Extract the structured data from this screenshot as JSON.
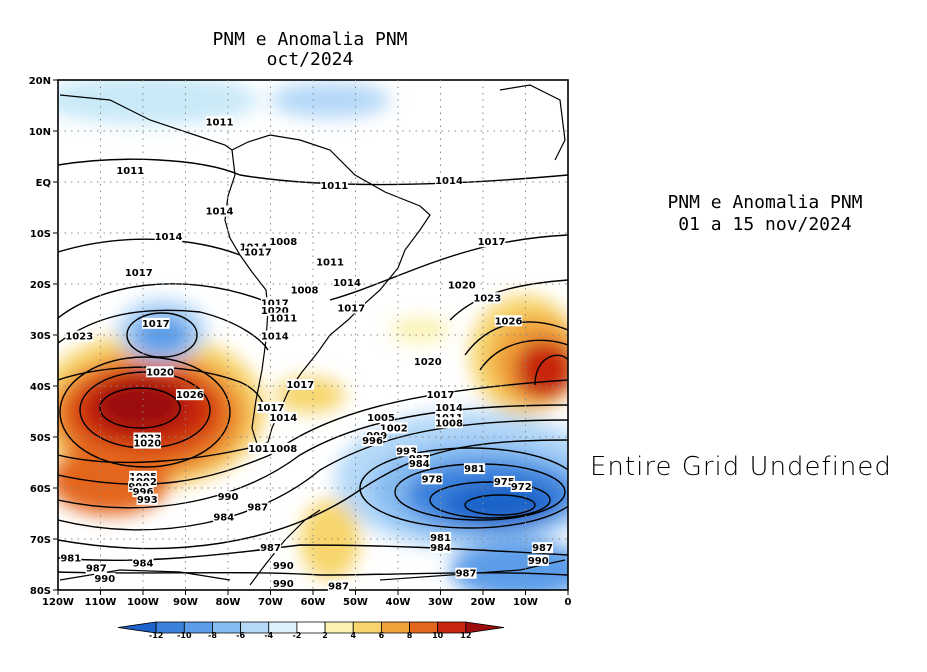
{
  "titles": {
    "map_line1": "PNM e Anomalia PNM",
    "map_line2": "oct/2024",
    "right_line1": "PNM e Anomalia PNM",
    "right_line2": "01 a 15 nov/2024",
    "right_panel_message": "Entire Grid Undefined"
  },
  "axes": {
    "lat_labels": [
      "20N",
      "10N",
      "EQ",
      "10S",
      "20S",
      "30S",
      "40S",
      "50S",
      "60S",
      "70S",
      "80S"
    ],
    "lon_labels": [
      "120W",
      "110W",
      "100W",
      "90W",
      "80W",
      "70W",
      "60W",
      "50W",
      "40W",
      "30W",
      "20W",
      "10W",
      "0"
    ]
  },
  "colorbar": {
    "labels": [
      "-12",
      "-10",
      "-8",
      "-6",
      "-4",
      "-2",
      "2",
      "4",
      "6",
      "8",
      "10",
      "12"
    ],
    "colors": [
      "#1d63c9",
      "#3b82dd",
      "#5b9de9",
      "#86bcf2",
      "#b4d8f8",
      "#dcf1fb",
      "#ffffff",
      "#fbf2b0",
      "#f7d56c",
      "#f0a23a",
      "#e4661c",
      "#c7260f",
      "#9b0d0d"
    ]
  },
  "contour_labels": [
    {
      "text": "1011",
      "lon": -82,
      "lat": 11.5
    },
    {
      "text": "1011",
      "lon": -103,
      "lat": 2
    },
    {
      "text": "1011",
      "lon": -55,
      "lat": -1
    },
    {
      "text": "1014",
      "lon": -28,
      "lat": 0
    },
    {
      "text": "1014",
      "lon": -82,
      "lat": -6
    },
    {
      "text": "1014",
      "lon": -94,
      "lat": -11
    },
    {
      "text": "1014",
      "lon": -74,
      "lat": -13
    },
    {
      "text": "1008",
      "lon": -67,
      "lat": -12
    },
    {
      "text": "1017",
      "lon": -73,
      "lat": -14
    },
    {
      "text": "1017",
      "lon": -18,
      "lat": -12
    },
    {
      "text": "1011",
      "lon": -56,
      "lat": -16
    },
    {
      "text": "1017",
      "lon": -101,
      "lat": -18
    },
    {
      "text": "1014",
      "lon": -52,
      "lat": -20
    },
    {
      "text": "1008",
      "lon": -62,
      "lat": -21.5
    },
    {
      "text": "1020",
      "lon": -25,
      "lat": -20.5
    },
    {
      "text": "1023",
      "lon": -19,
      "lat": -23
    },
    {
      "text": "1017",
      "lon": -69,
      "lat": -24
    },
    {
      "text": "1020",
      "lon": -69,
      "lat": -25.5
    },
    {
      "text": "1011",
      "lon": -67,
      "lat": -27
    },
    {
      "text": "1017",
      "lon": -51,
      "lat": -25
    },
    {
      "text": "1026",
      "lon": -14,
      "lat": -27.5
    },
    {
      "text": "1017",
      "lon": -97,
      "lat": -28
    },
    {
      "text": "1023",
      "lon": -115,
      "lat": -30.5
    },
    {
      "text": "1014",
      "lon": -69,
      "lat": -30.5
    },
    {
      "text": "1020",
      "lon": -33,
      "lat": -35.5
    },
    {
      "text": "1020",
      "lon": -96,
      "lat": -37.5
    },
    {
      "text": "1017",
      "lon": -63,
      "lat": -40
    },
    {
      "text": "1026",
      "lon": -89,
      "lat": -42
    },
    {
      "text": "1017",
      "lon": -30,
      "lat": -42
    },
    {
      "text": "1017",
      "lon": -70,
      "lat": -44.5
    },
    {
      "text": "1014",
      "lon": -28,
      "lat": -44.5
    },
    {
      "text": "1014",
      "lon": -67,
      "lat": -46.5
    },
    {
      "text": "1011",
      "lon": -28,
      "lat": -46.5
    },
    {
      "text": "1005",
      "lon": -44,
      "lat": -46.5
    },
    {
      "text": "1008",
      "lon": -28,
      "lat": -47.5
    },
    {
      "text": "1002",
      "lon": -41,
      "lat": -48.5
    },
    {
      "text": "999",
      "lon": -45,
      "lat": -50
    },
    {
      "text": "996",
      "lon": -46,
      "lat": -51
    },
    {
      "text": "1023",
      "lon": -99,
      "lat": -50.5
    },
    {
      "text": "1020",
      "lon": -99,
      "lat": -51.5
    },
    {
      "text": "1011",
      "lon": -72,
      "lat": -52.5
    },
    {
      "text": "1008",
      "lon": -67,
      "lat": -52.5
    },
    {
      "text": "993",
      "lon": -38,
      "lat": -53
    },
    {
      "text": "987",
      "lon": -35,
      "lat": -54.5
    },
    {
      "text": "984",
      "lon": -35,
      "lat": -55.5
    },
    {
      "text": "981",
      "lon": -22,
      "lat": -56.5
    },
    {
      "text": "978",
      "lon": -32,
      "lat": -58.5
    },
    {
      "text": "975",
      "lon": -15,
      "lat": -59
    },
    {
      "text": "972",
      "lon": -11,
      "lat": -60
    },
    {
      "text": "1005",
      "lon": -100,
      "lat": -58
    },
    {
      "text": "1002",
      "lon": -100,
      "lat": -59
    },
    {
      "text": "999",
      "lon": -101,
      "lat": -60
    },
    {
      "text": "996",
      "lon": -100,
      "lat": -61
    },
    {
      "text": "993",
      "lon": -99,
      "lat": -62.5
    },
    {
      "text": "990",
      "lon": -80,
      "lat": -62
    },
    {
      "text": "987",
      "lon": -73,
      "lat": -64
    },
    {
      "text": "984",
      "lon": -81,
      "lat": -66
    },
    {
      "text": "981",
      "lon": -30,
      "lat": -70
    },
    {
      "text": "984",
      "lon": -30,
      "lat": -72
    },
    {
      "text": "987",
      "lon": -70,
      "lat": -72
    },
    {
      "text": "987",
      "lon": -6,
      "lat": -72
    },
    {
      "text": "990",
      "lon": -7,
      "lat": -74.5
    },
    {
      "text": "981",
      "lon": -117,
      "lat": -74
    },
    {
      "text": "984",
      "lon": -100,
      "lat": -75
    },
    {
      "text": "990",
      "lon": -67,
      "lat": -75.5
    },
    {
      "text": "987",
      "lon": -111,
      "lat": -76
    },
    {
      "text": "987",
      "lon": -24,
      "lat": -77
    },
    {
      "text": "990",
      "lon": -109,
      "lat": -78
    },
    {
      "text": "990",
      "lon": -67,
      "lat": -79
    },
    {
      "text": "987",
      "lon": -54,
      "lat": -79.5
    }
  ]
}
